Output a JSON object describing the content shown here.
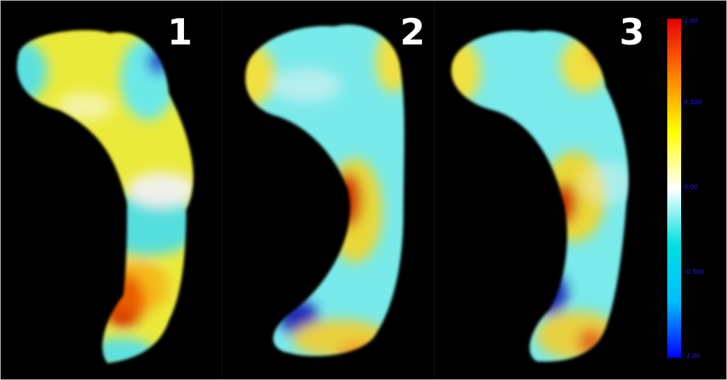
{
  "panels": [
    {
      "label": "1"
    },
    {
      "label": "2"
    },
    {
      "label": "3"
    }
  ],
  "colorbar": {
    "ticks": [
      "1.00",
      "0.500",
      "0.00",
      "-0.500",
      "-1.00"
    ],
    "colors": [
      "#e60000",
      "#ff7f00",
      "#ffff00",
      "#ffffff",
      "#00e0e0",
      "#00bfff",
      "#0000ff"
    ]
  }
}
